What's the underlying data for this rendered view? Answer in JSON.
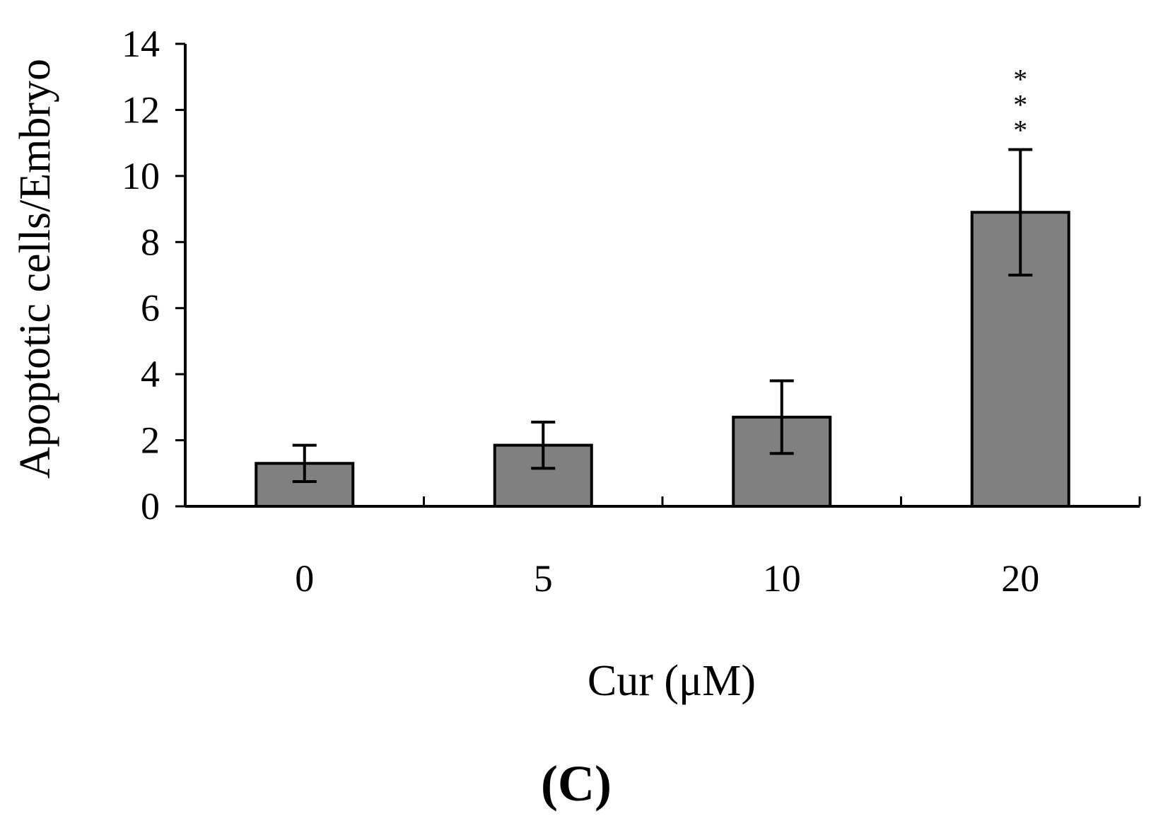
{
  "chart_data": {
    "type": "bar",
    "categories": [
      "0",
      "5",
      "10",
      "20"
    ],
    "values": [
      1.3,
      1.85,
      2.7,
      8.9
    ],
    "errors": [
      0.55,
      0.7,
      1.1,
      1.9
    ],
    "annotations": [
      {
        "category": "20",
        "text": "***"
      }
    ],
    "xlabel": "Cur (μM)",
    "ylabel": "Apoptotic cells/Embryo",
    "ylim": [
      0,
      14
    ],
    "yticks": [
      "0",
      "2",
      "4",
      "6",
      "8",
      "10",
      "12",
      "14"
    ],
    "bar_color": "#808080",
    "grid": false,
    "panel_label": "(C)"
  }
}
